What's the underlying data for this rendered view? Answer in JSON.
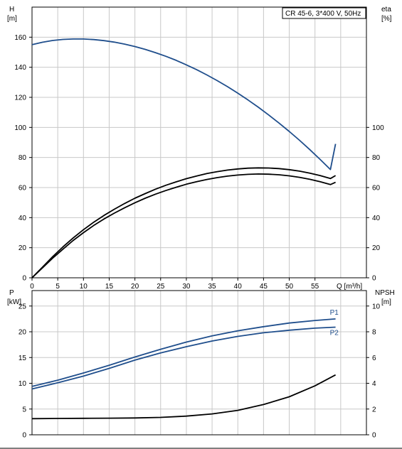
{
  "chart_data": [
    {
      "type": "line",
      "title": "CR 45-6, 3*400 V, 50Hz",
      "xlabel": "Q [m³/h]",
      "x_ticks": [
        0,
        5,
        10,
        15,
        20,
        25,
        30,
        35,
        40,
        45,
        50,
        55
      ],
      "xlim": [
        0,
        65
      ],
      "left_axis": {
        "label_top": "H",
        "label_unit": "[m]",
        "ylim": [
          0,
          180
        ],
        "ticks": [
          0,
          20,
          40,
          60,
          80,
          100,
          120,
          140,
          160
        ]
      },
      "right_axis": {
        "label_top": "eta",
        "label_unit": "[%]",
        "ylim": [
          0,
          180
        ],
        "ticks": [
          0,
          20,
          40,
          60,
          80,
          100
        ]
      },
      "grid": true,
      "series": [
        {
          "axis": "left",
          "color": "#1f4e8c",
          "x": [
            0,
            2,
            4,
            6,
            8,
            10,
            12,
            14,
            16,
            18,
            20,
            22,
            24,
            26,
            28,
            30,
            32,
            34,
            36,
            38,
            40,
            42,
            44,
            46,
            48,
            50,
            52,
            54,
            56,
            58,
            59
          ],
          "y": [
            155,
            156.6,
            157.8,
            158.5,
            158.8,
            158.8,
            158.4,
            157.7,
            156.7,
            155.4,
            153.8,
            151.9,
            149.7,
            147.3,
            144.6,
            141.6,
            138.4,
            134.9,
            131.1,
            127.1,
            122.8,
            118.2,
            113.4,
            108.3,
            102.9,
            97.3,
            91.4,
            85.2,
            78.7,
            72.0,
            89
          ]
        },
        {
          "axis": "right",
          "color": "#000000",
          "x": [
            0,
            2,
            4,
            6,
            8,
            10,
            12,
            14,
            16,
            18,
            20,
            22,
            24,
            26,
            28,
            30,
            32,
            34,
            36,
            38,
            40,
            42,
            44,
            46,
            48,
            50,
            52,
            54,
            56,
            58,
            59
          ],
          "y": [
            0,
            7,
            14,
            20.5,
            26.5,
            32,
            37,
            41.5,
            45.6,
            49.4,
            52.9,
            56,
            58.9,
            61.5,
            63.8,
            65.9,
            67.7,
            69.3,
            70.6,
            71.6,
            72.4,
            72.9,
            73.1,
            73.0,
            72.6,
            71.9,
            70.9,
            69.6,
            68.0,
            66.0,
            68
          ]
        },
        {
          "axis": "right",
          "color": "#000000",
          "x": [
            0,
            2,
            4,
            6,
            8,
            10,
            12,
            14,
            16,
            18,
            20,
            22,
            24,
            26,
            28,
            30,
            32,
            34,
            36,
            38,
            40,
            42,
            44,
            46,
            48,
            50,
            52,
            54,
            56,
            58,
            59
          ],
          "y": [
            0,
            6.5,
            13,
            19,
            24.8,
            30,
            34.8,
            39.1,
            43,
            46.6,
            49.9,
            52.9,
            55.6,
            58,
            60.2,
            62.2,
            63.9,
            65.4,
            66.6,
            67.6,
            68.3,
            68.8,
            69.0,
            68.9,
            68.5,
            67.8,
            66.8,
            65.5,
            63.9,
            62.0,
            63.5
          ]
        }
      ]
    },
    {
      "type": "line",
      "xlim": [
        0,
        65
      ],
      "left_axis": {
        "label_top": "P",
        "label_unit": "[kW]",
        "ylim": [
          0,
          28
        ],
        "ticks": [
          0,
          5,
          10,
          15,
          20,
          25
        ]
      },
      "right_axis": {
        "label_top": "NPSH",
        "label_unit": "[m]",
        "ylim": [
          0,
          11.2
        ],
        "ticks": [
          0,
          2,
          4,
          6,
          8,
          10
        ]
      },
      "grid": true,
      "series": [
        {
          "name": "P1",
          "axis": "left",
          "color": "#1f4e8c",
          "x": [
            0,
            5,
            10,
            15,
            20,
            25,
            30,
            35,
            40,
            45,
            50,
            55,
            59
          ],
          "y": [
            9.4,
            10.6,
            12.0,
            13.5,
            15.1,
            16.6,
            18.0,
            19.2,
            20.2,
            21.0,
            21.7,
            22.2,
            22.5
          ]
        },
        {
          "name": "P2",
          "axis": "left",
          "color": "#1f4e8c",
          "x": [
            0,
            5,
            10,
            15,
            20,
            25,
            30,
            35,
            40,
            45,
            50,
            55,
            59
          ],
          "y": [
            8.9,
            10.1,
            11.4,
            12.9,
            14.5,
            15.9,
            17.1,
            18.2,
            19.1,
            19.8,
            20.3,
            20.7,
            20.9
          ]
        },
        {
          "axis": "right",
          "color": "#000000",
          "x": [
            0,
            5,
            10,
            15,
            20,
            25,
            30,
            35,
            40,
            45,
            50,
            55,
            59
          ],
          "y": [
            1.25,
            1.27,
            1.28,
            1.29,
            1.31,
            1.35,
            1.45,
            1.62,
            1.9,
            2.35,
            2.95,
            3.8,
            4.65
          ]
        }
      ]
    }
  ]
}
